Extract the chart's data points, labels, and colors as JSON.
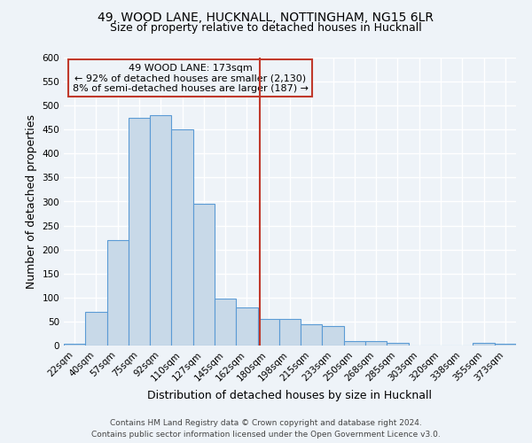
{
  "title_line1": "49, WOOD LANE, HUCKNALL, NOTTINGHAM, NG15 6LR",
  "title_line2": "Size of property relative to detached houses in Hucknall",
  "xlabel": "Distribution of detached houses by size in Hucknall",
  "ylabel": "Number of detached properties",
  "categories": [
    "22sqm",
    "40sqm",
    "57sqm",
    "75sqm",
    "92sqm",
    "110sqm",
    "127sqm",
    "145sqm",
    "162sqm",
    "180sqm",
    "198sqm",
    "215sqm",
    "233sqm",
    "250sqm",
    "268sqm",
    "285sqm",
    "303sqm",
    "320sqm",
    "338sqm",
    "355sqm",
    "373sqm"
  ],
  "values": [
    3,
    70,
    220,
    475,
    480,
    450,
    295,
    97,
    80,
    55,
    55,
    45,
    40,
    10,
    10,
    5,
    0,
    0,
    0,
    5,
    3
  ],
  "bar_color": "#c8d9e8",
  "bar_edge_color": "#5b9bd5",
  "ylim": [
    0,
    600
  ],
  "yticks": [
    0,
    50,
    100,
    150,
    200,
    250,
    300,
    350,
    400,
    450,
    500,
    550,
    600
  ],
  "vline_x_index": 8.62,
  "vline_color": "#c0392b",
  "annotation_text_line1": "49 WOOD LANE: 173sqm",
  "annotation_text_line2": "← 92% of detached houses are smaller (2,130)",
  "annotation_text_line3": "8% of semi-detached houses are larger (187) →",
  "footer_line1": "Contains HM Land Registry data © Crown copyright and database right 2024.",
  "footer_line2": "Contains public sector information licensed under the Open Government Licence v3.0.",
  "background_color": "#eef3f8",
  "grid_color": "#ffffff",
  "title_fontsize": 10,
  "subtitle_fontsize": 9,
  "axis_label_fontsize": 9,
  "tick_fontsize": 7.5,
  "annotation_fontsize": 8,
  "footer_fontsize": 6.5
}
